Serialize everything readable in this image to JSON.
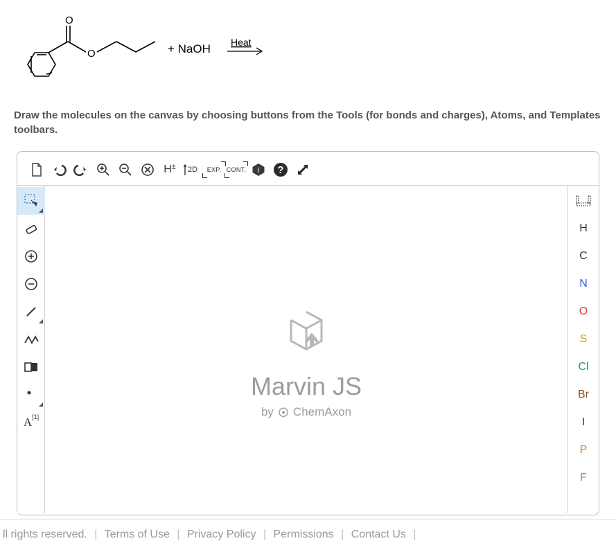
{
  "question": {
    "reagent_text": "+ NaOH",
    "condition_text": "Heat",
    "instruction_text": "Draw the molecules on the canvas by choosing buttons from the Tools (for bonds and charges), Atoms, and Templates toolbars."
  },
  "reaction_svg": {
    "molecule_stroke": "#000000",
    "text_color": "#000000",
    "arrow_color": "#000000"
  },
  "top_toolbar": {
    "items": [
      {
        "name": "new-document-icon",
        "type": "svg"
      },
      {
        "name": "undo-icon",
        "type": "svg"
      },
      {
        "name": "redo-icon",
        "type": "svg"
      },
      {
        "name": "zoom-in-icon",
        "type": "svg"
      },
      {
        "name": "zoom-out-icon",
        "type": "svg"
      },
      {
        "name": "clear-icon",
        "type": "svg"
      },
      {
        "name": "hydrogens-icon",
        "type": "text",
        "label": "H±"
      },
      {
        "name": "2d-clean-icon",
        "type": "text",
        "label": "2D"
      },
      {
        "name": "export-icon",
        "type": "bracket",
        "label": "EXP."
      },
      {
        "name": "contract-icon",
        "type": "bracket",
        "label": "CONT."
      },
      {
        "name": "info-icon",
        "type": "svg"
      },
      {
        "name": "help-icon",
        "type": "svg"
      },
      {
        "name": "fullscreen-icon",
        "type": "svg"
      }
    ]
  },
  "left_toolbar": {
    "items": [
      {
        "name": "selection-tool",
        "selected": true,
        "has_corner": true
      },
      {
        "name": "eraser-tool",
        "selected": false,
        "has_corner": false
      },
      {
        "name": "charge-plus-tool",
        "selected": false,
        "has_corner": false
      },
      {
        "name": "charge-minus-tool",
        "selected": false,
        "has_corner": false
      },
      {
        "name": "single-bond-tool",
        "selected": false,
        "has_corner": true
      },
      {
        "name": "chain-tool",
        "selected": false,
        "has_corner": false
      },
      {
        "name": "template-tool",
        "selected": false,
        "has_corner": false
      },
      {
        "name": "radical-tool",
        "selected": false,
        "has_corner": true
      },
      {
        "name": "map-atom-tool",
        "selected": false,
        "has_corner": false
      }
    ]
  },
  "right_toolbar": {
    "periodic_icon_name": "periodic-table-icon",
    "atoms": [
      {
        "symbol": "H",
        "color": "#333333"
      },
      {
        "symbol": "C",
        "color": "#333333"
      },
      {
        "symbol": "N",
        "color": "#2a5cd6"
      },
      {
        "symbol": "O",
        "color": "#d73a2f"
      },
      {
        "symbol": "S",
        "color": "#c6a500"
      },
      {
        "symbol": "Cl",
        "color": "#1e9e4d"
      },
      {
        "symbol": "Br",
        "color": "#a04925"
      },
      {
        "symbol": "I",
        "color": "#333333"
      },
      {
        "symbol": "P",
        "color": "#d87a1f"
      },
      {
        "symbol": "F",
        "color": "#6fb241"
      }
    ]
  },
  "watermark": {
    "title": "Marvin JS",
    "by": "by",
    "brand": "ChemAxon"
  },
  "footer": {
    "rights": "ll rights reserved.",
    "links": [
      "Terms of Use",
      "Privacy Policy",
      "Permissions",
      "Contact Us"
    ]
  },
  "colors": {
    "instruction_color": "#555555",
    "border_color": "#bbbbbb",
    "toolbar_divider": "#cfcfcf",
    "selected_bg": "#d6e9f8",
    "watermark_color": "#9c9c9c",
    "footer_text": "#9a9a9a"
  }
}
